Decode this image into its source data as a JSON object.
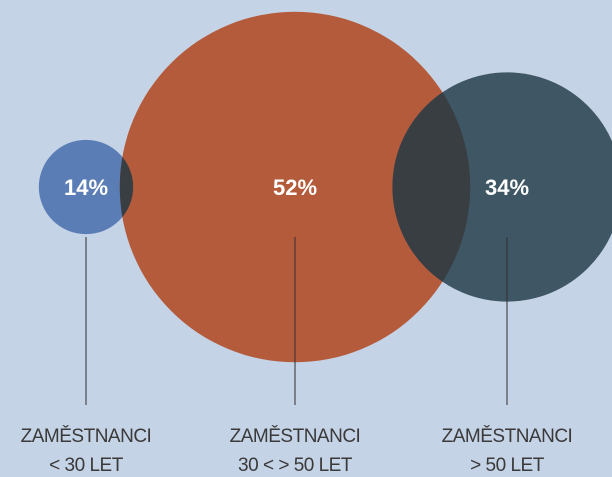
{
  "chart_data": {
    "type": "circles",
    "categories": [
      [
        "ZAMĚSTNANCI",
        "< 30 LET"
      ],
      [
        "ZAMĚSTNANCI",
        "30 < > 50 LET"
      ],
      [
        "ZAMĚSTNANCI",
        "> 50 LET"
      ]
    ],
    "values": [
      14,
      52,
      34
    ],
    "value_labels": [
      "14%",
      "52%",
      "34%"
    ],
    "colors": [
      "#5b7db6",
      "#b45b3c",
      "#3f5664"
    ]
  }
}
